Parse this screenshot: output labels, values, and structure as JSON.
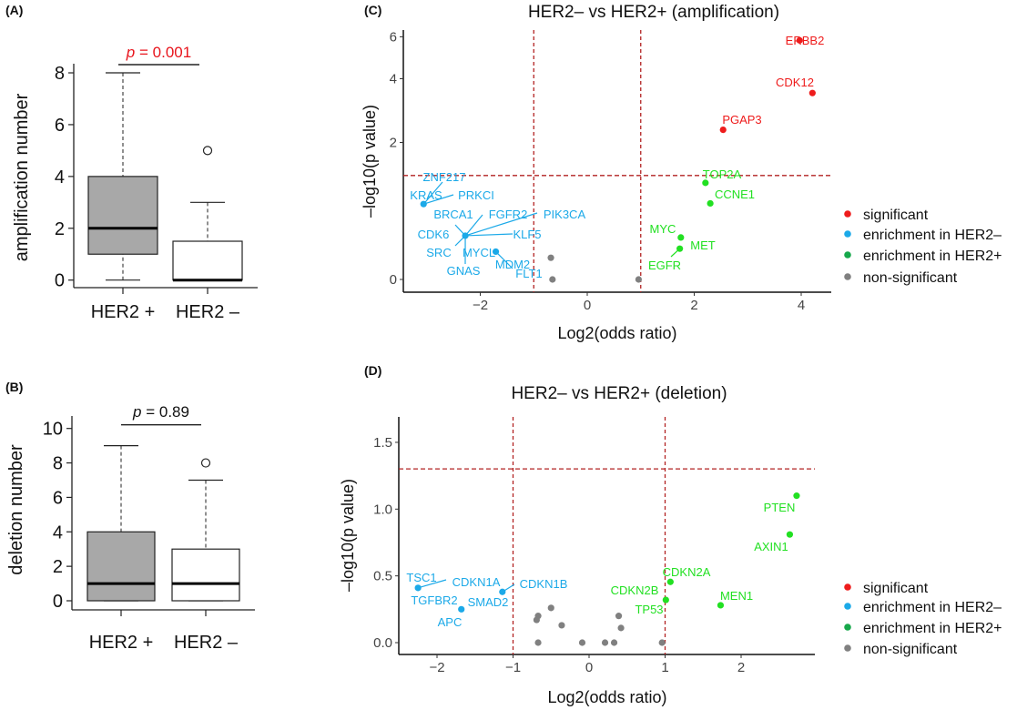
{
  "colors": {
    "significant": "#ee1c1c",
    "enrichment_her2_neg": "#1ba9e8",
    "enrichment_her2_pos": "#22e022",
    "non_significant": "#808080",
    "legend_her2_pos": "#17a84b",
    "threshold_line": "#b22222",
    "box_her2_pos_fill": "#a8a8a8",
    "box_her2_neg_fill": "#ffffff",
    "p_significant": "#e8141c"
  },
  "chart_data": [
    {
      "panel": "(A)",
      "type": "box",
      "ylabel": "amplification number",
      "categories": [
        "HER2 +",
        "HER2 –"
      ],
      "yticks": [
        0,
        2,
        4,
        6,
        8
      ],
      "boxes": [
        {
          "min": 0,
          "q1": 1,
          "median": 2,
          "q3": 4,
          "max": 8,
          "outliers": []
        },
        {
          "min": 0,
          "q1": 0,
          "median": 0,
          "q3": 1.5,
          "max": 3,
          "outliers": [
            5
          ]
        }
      ],
      "p_text": "= 0.001",
      "p_symbol": "p",
      "p_significant": true
    },
    {
      "panel": "(B)",
      "type": "box",
      "ylabel": "deletion number",
      "categories": [
        "HER2 +",
        "HER2 –"
      ],
      "yticks": [
        0,
        2,
        4,
        6,
        8,
        10
      ],
      "boxes": [
        {
          "min": 0,
          "q1": 0,
          "median": 1,
          "q3": 4,
          "max": 9,
          "outliers": []
        },
        {
          "min": 0,
          "q1": 0,
          "median": 1,
          "q3": 3,
          "max": 7,
          "outliers": [
            8
          ]
        }
      ],
      "p_text": "= 0.89",
      "p_symbol": "p",
      "p_significant": false
    },
    {
      "panel": "(C)",
      "type": "scatter",
      "title": "HER2– vs  HER2+ (amplification)",
      "xlabel": "Log2(odds ratio)",
      "ylabel": "–log10(p value)",
      "y_scale": "log1p",
      "xlim": [
        -3.43,
        4.56
      ],
      "ylim": [
        -0.1,
        6.4
      ],
      "xticks": [
        -2,
        0,
        2,
        4
      ],
      "xtick_labels": [
        "−2",
        "0",
        "2",
        "4"
      ],
      "yticks": [
        0,
        2,
        4,
        6
      ],
      "thresholds": {
        "x": [
          -1,
          1
        ],
        "y": 1.301
      },
      "grid": false,
      "legend": {
        "placement": "right",
        "entries": [
          "significant",
          "enrichment in HER2–",
          "enrichment in HER2+",
          "non-significant"
        ]
      },
      "points": [
        {
          "x": 3.97,
          "y": 5.8,
          "group": "significant",
          "labels": [
            "ERBB2"
          ]
        },
        {
          "x": 4.21,
          "y": 3.46,
          "group": "significant",
          "labels": [
            "CDK12"
          ]
        },
        {
          "x": 2.54,
          "y": 2.32,
          "group": "significant",
          "labels": [
            "PGAP3"
          ]
        },
        {
          "x": 2.21,
          "y": 1.17,
          "group": "enrichment_her2_pos",
          "labels": [
            "TOP2A"
          ]
        },
        {
          "x": 2.3,
          "y": 0.84,
          "group": "enrichment_her2_pos",
          "labels": [
            "CCNE1"
          ]
        },
        {
          "x": 1.75,
          "y": 0.4,
          "group": "enrichment_her2_pos",
          "labels": [
            "MYC"
          ]
        },
        {
          "x": 1.73,
          "y": 0.28,
          "group": "enrichment_her2_pos",
          "labels": [
            "MET",
            "EGFR"
          ]
        },
        {
          "x": -3.06,
          "y": 0.83,
          "group": "enrichment_her2_neg",
          "labels": [
            "ZNF217",
            "KRAS",
            "PRKCI"
          ]
        },
        {
          "x": -2.28,
          "y": 0.42,
          "group": "enrichment_her2_neg",
          "labels": [
            "BRCA1",
            "FGFR2",
            "PIK3CA",
            "CDK6",
            "KLF5",
            "SRC",
            "GNAS"
          ]
        },
        {
          "x": -1.71,
          "y": 0.25,
          "group": "enrichment_her2_neg",
          "labels": [
            "MYCL",
            "MDM2",
            "FLT1"
          ]
        },
        {
          "x": -0.68,
          "y": 0.19,
          "group": "non_significant",
          "labels": []
        },
        {
          "x": -0.65,
          "y": 0.0,
          "group": "non_significant",
          "labels": []
        },
        {
          "x": 0.96,
          "y": 0.0,
          "group": "non_significant",
          "labels": []
        }
      ]
    },
    {
      "panel": "(D)",
      "type": "scatter",
      "title": "HER2– vs  HER2+ (deletion)",
      "xlabel": "Log2(odds ratio)",
      "ylabel": "–log10(p value)",
      "y_scale": "linear",
      "xlim": [
        -2.5,
        2.97
      ],
      "ylim": [
        -0.09,
        1.69
      ],
      "xticks": [
        -2,
        -1,
        0,
        1,
        2
      ],
      "xtick_labels": [
        "−2",
        "−1",
        "0",
        "1",
        "2"
      ],
      "yticks": [
        0,
        0.5,
        1.0,
        1.5
      ],
      "ytick_labels": [
        "0.0",
        "0.5",
        "1.0",
        "1.5"
      ],
      "thresholds": {
        "x": [
          -1,
          1
        ],
        "y": 1.301
      },
      "grid": false,
      "legend": {
        "placement": "right",
        "entries": [
          "significant",
          "enrichment in HER2–",
          "enrichment in HER2+",
          "non-significant"
        ]
      },
      "points": [
        {
          "x": 2.73,
          "y": 1.1,
          "group": "enrichment_her2_pos",
          "labels": [
            "PTEN"
          ]
        },
        {
          "x": 2.64,
          "y": 0.81,
          "group": "enrichment_her2_pos",
          "labels": [
            "AXIN1"
          ]
        },
        {
          "x": 1.07,
          "y": 0.455,
          "group": "enrichment_her2_pos",
          "labels": [
            "CDKN2A"
          ]
        },
        {
          "x": 1.01,
          "y": 0.32,
          "group": "enrichment_her2_pos",
          "labels": [
            "CDKN2B",
            "TP53"
          ]
        },
        {
          "x": 1.73,
          "y": 0.28,
          "group": "enrichment_her2_pos",
          "labels": [
            "MEN1"
          ]
        },
        {
          "x": -2.25,
          "y": 0.41,
          "group": "enrichment_her2_neg",
          "labels": [
            "TSC1",
            "CDKN1A",
            "TGFBR2"
          ]
        },
        {
          "x": -1.14,
          "y": 0.38,
          "group": "enrichment_her2_neg",
          "labels": [
            "CDKN1B"
          ]
        },
        {
          "x": -1.68,
          "y": 0.25,
          "group": "enrichment_her2_neg",
          "labels": [
            "SMAD2",
            "APC"
          ]
        },
        {
          "x": -0.5,
          "y": 0.26,
          "group": "non_significant",
          "labels": []
        },
        {
          "x": -0.67,
          "y": 0.2,
          "group": "non_significant",
          "labels": []
        },
        {
          "x": -0.69,
          "y": 0.17,
          "group": "non_significant",
          "labels": []
        },
        {
          "x": -0.36,
          "y": 0.13,
          "group": "non_significant",
          "labels": []
        },
        {
          "x": 0.39,
          "y": 0.2,
          "group": "non_significant",
          "labels": []
        },
        {
          "x": 0.42,
          "y": 0.11,
          "group": "non_significant",
          "labels": []
        },
        {
          "x": -0.67,
          "y": 0.0,
          "group": "non_significant",
          "labels": []
        },
        {
          "x": -0.09,
          "y": 0.0,
          "group": "non_significant",
          "labels": []
        },
        {
          "x": 0.21,
          "y": 0.0,
          "group": "non_significant",
          "labels": []
        },
        {
          "x": 0.33,
          "y": 0.0,
          "group": "non_significant",
          "labels": []
        },
        {
          "x": 0.96,
          "y": 0.0,
          "group": "non_significant",
          "labels": []
        }
      ]
    }
  ]
}
